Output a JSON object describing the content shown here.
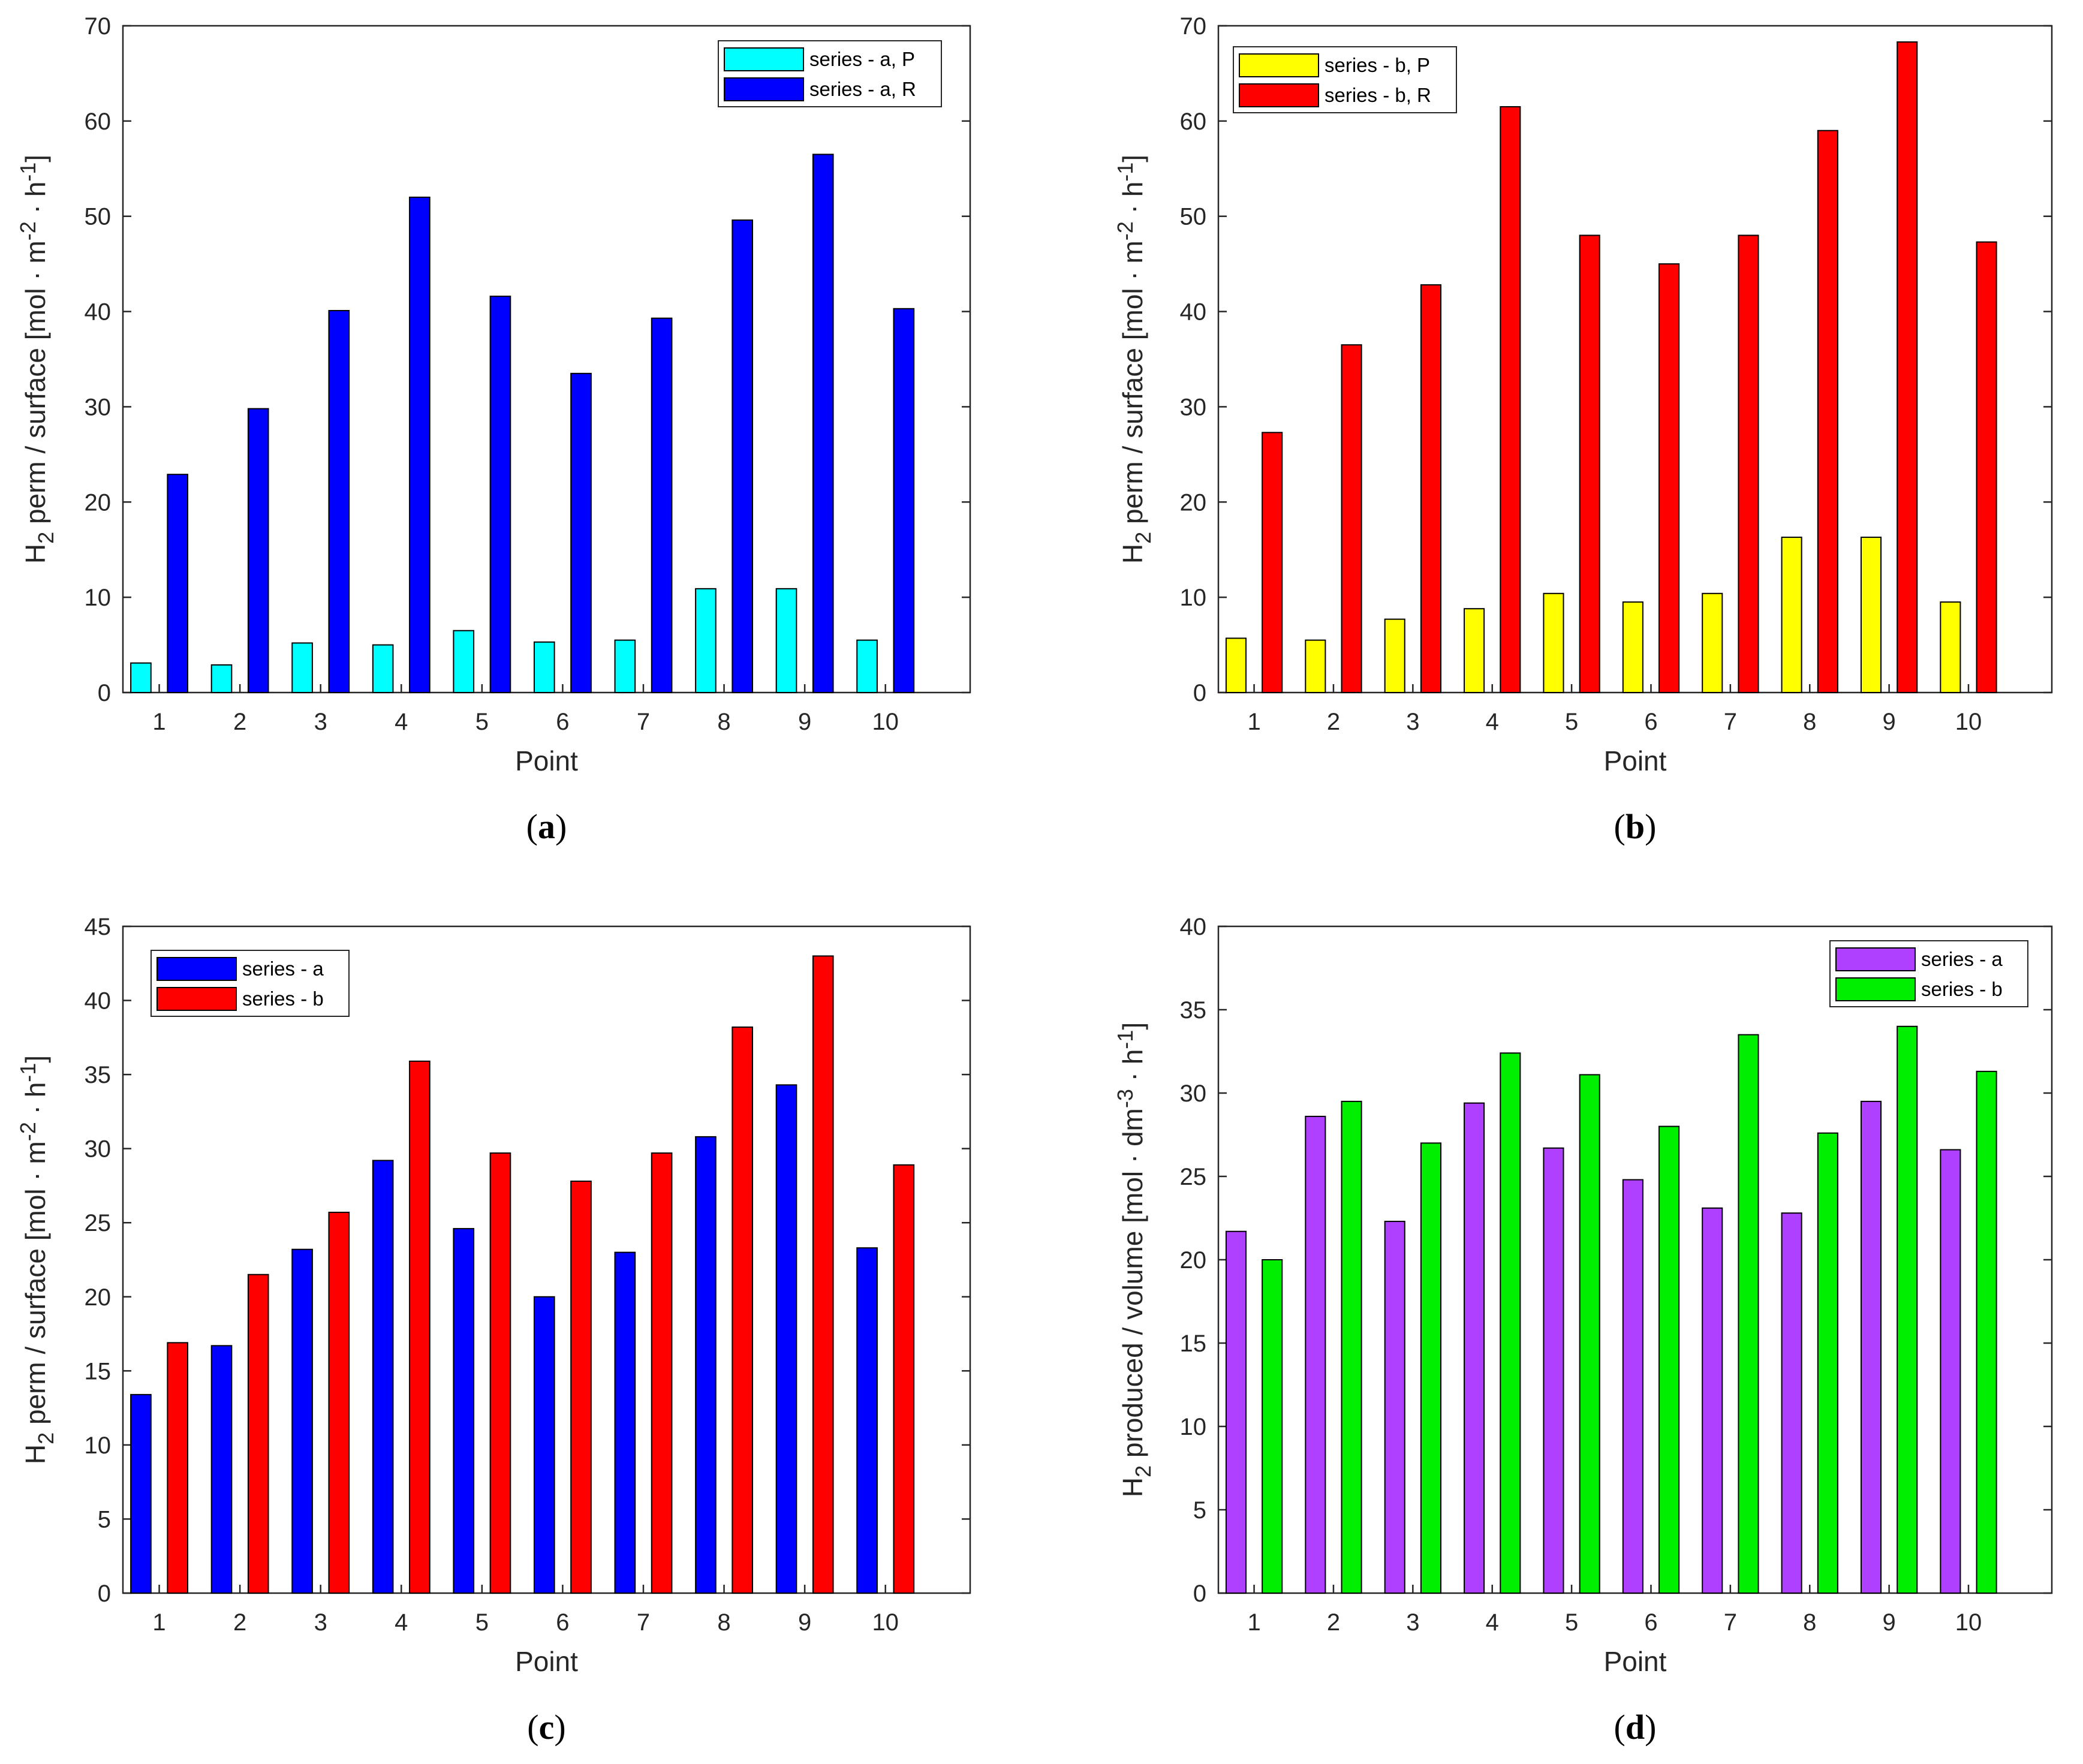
{
  "chart_data": [
    {
      "id": "a",
      "type": "bar",
      "caption": "a",
      "categories": [
        "1",
        "2",
        "3",
        "4",
        "5",
        "6",
        "7",
        "8",
        "9",
        "10"
      ],
      "series": [
        {
          "name": "series - a, P",
          "color": "#00FFFF",
          "values": [
            3.1,
            2.9,
            5.2,
            5.0,
            6.5,
            5.3,
            5.5,
            10.9,
            10.9,
            5.5
          ]
        },
        {
          "name": "series - a, R",
          "color": "#0000FF",
          "values": [
            22.9,
            29.8,
            40.1,
            52.0,
            41.6,
            33.5,
            39.3,
            49.6,
            56.5,
            40.3
          ]
        }
      ],
      "xlabel": "Point",
      "ylabel": {
        "main": "H",
        "sub": "2",
        "rest": " perm / surface [mol · m",
        "sup1": "-2",
        "mid": " · h",
        "sup2": "-1",
        "end": "]"
      },
      "ylim": [
        0,
        70
      ],
      "yticks": [
        "0",
        "10",
        "20",
        "30",
        "40",
        "50",
        "60",
        "70"
      ],
      "legend_position": "top-right"
    },
    {
      "id": "b",
      "type": "bar",
      "caption": "b",
      "categories": [
        "1",
        "2",
        "3",
        "4",
        "5",
        "6",
        "7",
        "8",
        "9",
        "10"
      ],
      "series": [
        {
          "name": "series - b, P",
          "color": "#FFFF00",
          "values": [
            5.7,
            5.5,
            7.7,
            8.8,
            10.4,
            9.5,
            10.4,
            16.3,
            16.3,
            9.5
          ]
        },
        {
          "name": "series - b, R",
          "color": "#FF0000",
          "values": [
            27.3,
            36.5,
            42.8,
            61.5,
            48.0,
            45.0,
            48.0,
            59.0,
            68.3,
            47.3
          ]
        }
      ],
      "xlabel": "Point",
      "ylabel": {
        "main": "H",
        "sub": "2",
        "rest": " perm / surface [mol · m",
        "sup1": "-2",
        "mid": " · h",
        "sup2": "-1",
        "end": "]"
      },
      "ylim": [
        0,
        70
      ],
      "yticks": [
        "0",
        "10",
        "20",
        "30",
        "40",
        "50",
        "60",
        "70"
      ],
      "legend_position": "top-left"
    },
    {
      "id": "c",
      "type": "bar",
      "caption": "c",
      "categories": [
        "1",
        "2",
        "3",
        "4",
        "5",
        "6",
        "7",
        "8",
        "9",
        "10"
      ],
      "series": [
        {
          "name": "series - a",
          "color": "#0000FF",
          "values": [
            13.4,
            16.7,
            23.2,
            29.2,
            24.6,
            20.0,
            23.0,
            30.8,
            34.3,
            23.3
          ]
        },
        {
          "name": "series - b",
          "color": "#FF0000",
          "values": [
            16.9,
            21.5,
            25.7,
            35.9,
            29.7,
            27.8,
            29.7,
            38.2,
            43.0,
            28.9
          ]
        }
      ],
      "xlabel": "Point",
      "ylabel": {
        "main": "H",
        "sub": "2",
        "rest": " perm / surface [mol · m",
        "sup1": "-2",
        "mid": " · h",
        "sup2": "-1",
        "end": "]"
      },
      "ylim": [
        0,
        45
      ],
      "yticks": [
        "0",
        "5",
        "10",
        "15",
        "20",
        "25",
        "30",
        "35",
        "40",
        "45"
      ],
      "legend_position": "top-left"
    },
    {
      "id": "d",
      "type": "bar",
      "caption": "d",
      "categories": [
        "1",
        "2",
        "3",
        "4",
        "5",
        "6",
        "7",
        "8",
        "9",
        "10"
      ],
      "series": [
        {
          "name": "series - a",
          "color": "#B040FF",
          "values": [
            21.7,
            28.6,
            22.3,
            29.4,
            26.7,
            24.8,
            23.1,
            22.8,
            29.5,
            26.6
          ]
        },
        {
          "name": "series - b",
          "color": "#00EE00",
          "values": [
            20.0,
            29.5,
            27.0,
            32.4,
            31.1,
            28.0,
            33.5,
            27.6,
            34.0,
            31.3
          ]
        }
      ],
      "xlabel": "Point",
      "ylabel": {
        "main": "H",
        "sub": "2",
        "rest": " produced / volume [mol · dm",
        "sup1": "-3",
        "mid": " · h",
        "sup2": "-1",
        "end": "]"
      },
      "ylim": [
        0,
        40
      ],
      "yticks": [
        "0",
        "5",
        "10",
        "15",
        "20",
        "25",
        "30",
        "35",
        "40"
      ],
      "legend_position": "top-right"
    }
  ]
}
